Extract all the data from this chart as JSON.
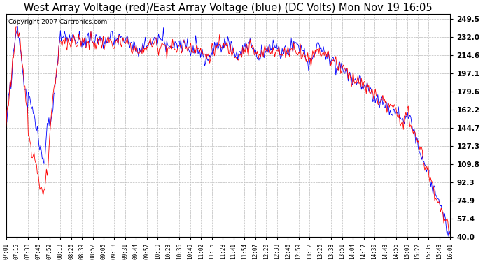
{
  "title": "West Array Voltage (red)/East Array Voltage (blue) (DC Volts) Mon Nov 19 16:05",
  "copyright": "Copyright 2007 Cartronics.com",
  "ylabel_right": [
    "249.5",
    "232.0",
    "214.6",
    "197.1",
    "179.6",
    "162.2",
    "144.7",
    "127.3",
    "109.8",
    "92.3",
    "74.9",
    "57.4",
    "40.0"
  ],
  "ymin": 40.0,
  "ymax": 254.0,
  "background_color": "#ffffff",
  "plot_bg_color": "#ffffff",
  "grid_color": "#bbbbbb",
  "west_color": "red",
  "east_color": "blue",
  "title_fontsize": 10.5,
  "copyright_fontsize": 6.5,
  "x_labels": [
    "07:01",
    "07:15",
    "07:30",
    "07:46",
    "07:59",
    "08:13",
    "08:26",
    "08:39",
    "08:52",
    "09:05",
    "09:18",
    "09:31",
    "09:44",
    "09:57",
    "10:10",
    "10:23",
    "10:36",
    "10:49",
    "11:02",
    "11:15",
    "11:28",
    "11:41",
    "11:54",
    "12:07",
    "12:20",
    "12:33",
    "12:46",
    "12:59",
    "13:12",
    "13:25",
    "13:38",
    "13:51",
    "14:04",
    "14:17",
    "14:30",
    "14:43",
    "14:56",
    "15:09",
    "15:22",
    "15:35",
    "15:48",
    "16:01"
  ]
}
